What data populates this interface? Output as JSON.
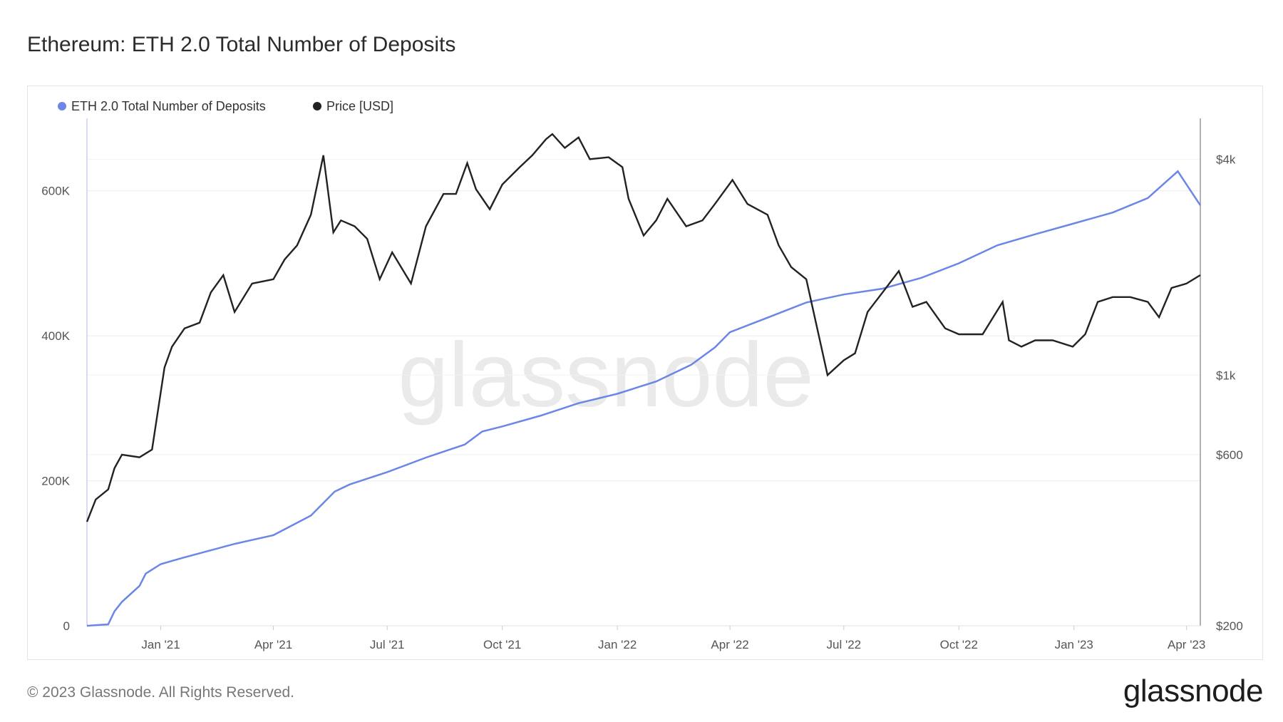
{
  "page": {
    "title": "Ethereum: ETH 2.0 Total Number of Deposits",
    "footer": "© 2023 Glassnode. All Rights Reserved.",
    "brand": "glassnode",
    "watermark": "glassnode"
  },
  "chart_data": {
    "type": "line",
    "title": "Ethereum: ETH 2.0 Total Number of Deposits",
    "x_ticks": [
      "Jan '21",
      "Apr '21",
      "Jul '21",
      "Oct '21",
      "Jan '22",
      "Apr '22",
      "Jul '22",
      "Oct '22",
      "Jan '23",
      "Apr '23"
    ],
    "x_range": [
      "2020-11-03",
      "2023-04-12"
    ],
    "y_left": {
      "ticks": [
        "0",
        "200K",
        "400K",
        "600K"
      ],
      "range": [
        0,
        700000
      ],
      "scale": "linear"
    },
    "y_right": {
      "ticks": [
        "$200",
        "$600",
        "$1k",
        "$4k"
      ],
      "range": [
        200,
        5200
      ],
      "scale": "log"
    },
    "grid": true,
    "legend_position": "top-left",
    "series": [
      {
        "name": "ETH 2.0 Total Number of Deposits",
        "axis": "left",
        "color": "#6b86e6",
        "x": [
          "2020-11-03",
          "2020-11-20",
          "2020-11-25",
          "2020-12-01",
          "2020-12-15",
          "2020-12-20",
          "2021-01-01",
          "2021-01-15",
          "2021-02-01",
          "2021-03-01",
          "2021-04-01",
          "2021-05-01",
          "2021-05-20",
          "2021-06-01",
          "2021-07-01",
          "2021-08-01",
          "2021-09-01",
          "2021-09-15",
          "2021-10-01",
          "2021-11-01",
          "2021-12-01",
          "2022-01-01",
          "2022-02-01",
          "2022-03-01",
          "2022-03-20",
          "2022-04-01",
          "2022-05-01",
          "2022-06-01",
          "2022-07-01",
          "2022-08-01",
          "2022-09-01",
          "2022-10-01",
          "2022-11-01",
          "2022-12-01",
          "2023-01-01",
          "2023-02-01",
          "2023-03-01",
          "2023-03-25",
          "2023-04-12"
        ],
        "values": [
          0,
          2000,
          20000,
          33000,
          55000,
          72000,
          85000,
          92000,
          100000,
          113000,
          125000,
          152000,
          185000,
          195000,
          212000,
          232000,
          250000,
          268000,
          275000,
          290000,
          307000,
          320000,
          337000,
          360000,
          384000,
          405000,
          425000,
          446000,
          457000,
          465000,
          480000,
          500000,
          525000,
          540000,
          555000,
          570000,
          590000,
          627000,
          580000
        ]
      },
      {
        "name": "Price [USD]",
        "axis": "right",
        "color": "#222222",
        "x": [
          "2020-11-03",
          "2020-11-10",
          "2020-11-20",
          "2020-11-25",
          "2020-12-01",
          "2020-12-15",
          "2020-12-25",
          "2021-01-04",
          "2021-01-10",
          "2021-01-20",
          "2021-02-01",
          "2021-02-10",
          "2021-02-20",
          "2021-03-01",
          "2021-03-15",
          "2021-04-01",
          "2021-04-10",
          "2021-04-20",
          "2021-05-01",
          "2021-05-11",
          "2021-05-19",
          "2021-05-25",
          "2021-06-05",
          "2021-06-15",
          "2021-06-25",
          "2021-07-05",
          "2021-07-20",
          "2021-08-01",
          "2021-08-15",
          "2021-08-25",
          "2021-09-03",
          "2021-09-10",
          "2021-09-21",
          "2021-10-01",
          "2021-10-15",
          "2021-10-25",
          "2021-11-05",
          "2021-11-10",
          "2021-11-20",
          "2021-12-01",
          "2021-12-10",
          "2021-12-25",
          "2022-01-05",
          "2022-01-10",
          "2022-01-22",
          "2022-02-01",
          "2022-02-10",
          "2022-02-25",
          "2022-03-10",
          "2022-03-20",
          "2022-04-03",
          "2022-04-15",
          "2022-05-01",
          "2022-05-10",
          "2022-05-20",
          "2022-06-01",
          "2022-06-13",
          "2022-06-18",
          "2022-07-01",
          "2022-07-10",
          "2022-07-20",
          "2022-08-01",
          "2022-08-14",
          "2022-08-25",
          "2022-09-05",
          "2022-09-20",
          "2022-10-01",
          "2022-10-20",
          "2022-11-05",
          "2022-11-10",
          "2022-11-20",
          "2022-12-01",
          "2022-12-15",
          "2022-12-31",
          "2023-01-10",
          "2023-01-20",
          "2023-02-01",
          "2023-02-15",
          "2023-03-01",
          "2023-03-10",
          "2023-03-20",
          "2023-04-01",
          "2023-04-12"
        ],
        "values": [
          390,
          450,
          480,
          550,
          600,
          590,
          620,
          1050,
          1200,
          1350,
          1400,
          1700,
          1900,
          1500,
          1800,
          1850,
          2100,
          2300,
          2800,
          4100,
          2500,
          2700,
          2600,
          2400,
          1850,
          2200,
          1800,
          2600,
          3200,
          3200,
          3900,
          3300,
          2900,
          3400,
          3800,
          4100,
          4550,
          4700,
          4300,
          4600,
          4000,
          4050,
          3800,
          3100,
          2450,
          2700,
          3100,
          2600,
          2700,
          3000,
          3500,
          3000,
          2800,
          2300,
          2000,
          1850,
          1200,
          1000,
          1100,
          1150,
          1500,
          1700,
          1950,
          1550,
          1600,
          1350,
          1300,
          1300,
          1600,
          1250,
          1200,
          1250,
          1250,
          1200,
          1300,
          1600,
          1650,
          1650,
          1600,
          1450,
          1750,
          1800,
          1900
        ]
      }
    ]
  }
}
